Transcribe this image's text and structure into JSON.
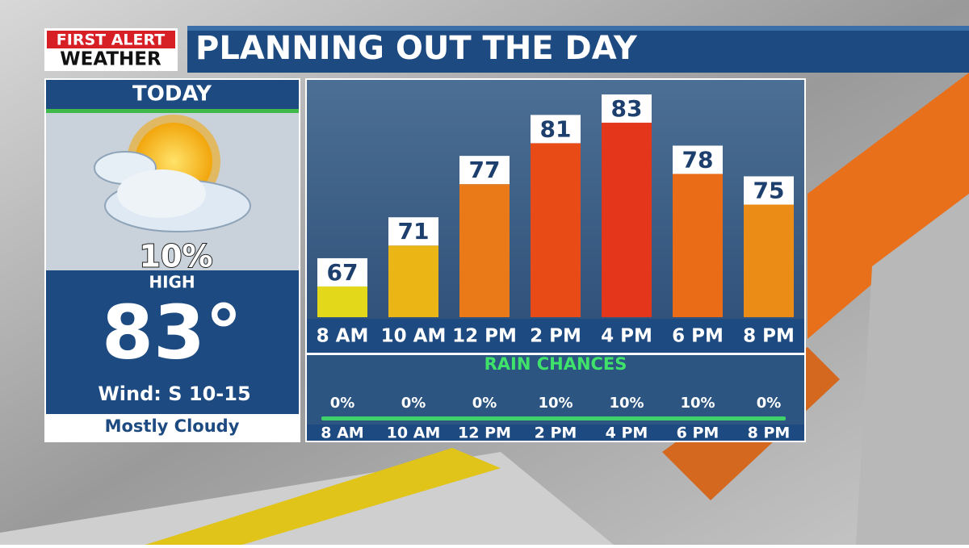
{
  "header": {
    "logo_line1": "FIRST ALERT",
    "logo_line2": "WEATHER",
    "title": "PLANNING OUT THE DAY"
  },
  "today": {
    "title": "TODAY",
    "rain": "10%",
    "high_label": "HIGH",
    "high": "83°",
    "wind": "Wind: S 10-15",
    "condition": "Mostly Cloudy"
  },
  "chart_data": [
    {
      "type": "bar",
      "categories": [
        "8 AM",
        "10 AM",
        "12 PM",
        "2 PM",
        "4 PM",
        "6 PM",
        "8 PM"
      ],
      "values": [
        67,
        71,
        77,
        81,
        83,
        78,
        75
      ],
      "colors": [
        "#e4d81a",
        "#ebb515",
        "#ea7a17",
        "#e84b16",
        "#e3361a",
        "#ea6c17",
        "#eb8c16"
      ],
      "ylim": [
        64,
        86
      ]
    },
    {
      "type": "label-row",
      "title": "RAIN CHANCES",
      "categories": [
        "8 AM",
        "10 AM",
        "12 PM",
        "2 PM",
        "4 PM",
        "6 PM",
        "8 PM"
      ],
      "values": [
        0,
        0,
        0,
        10,
        10,
        10,
        0
      ],
      "value_labels": [
        "0%",
        "0%",
        "0%",
        "10%",
        "10%",
        "10%",
        "0%"
      ]
    }
  ]
}
